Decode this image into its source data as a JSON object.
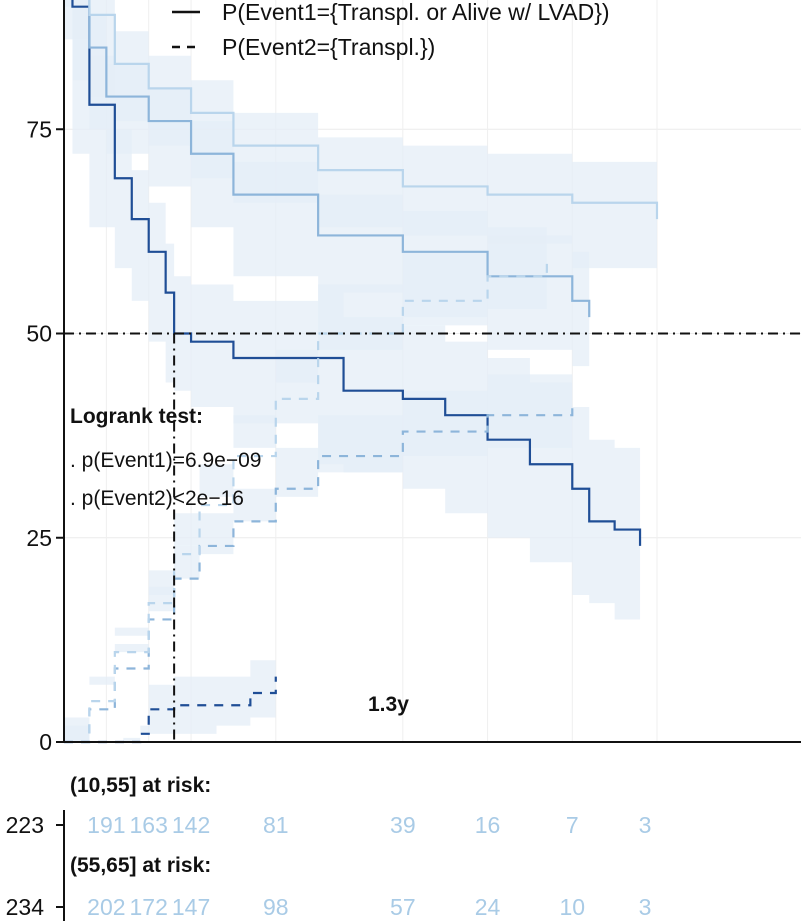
{
  "legend": {
    "event1": "P(Event1={Transpl. or Alive w/ LVAD})",
    "event2": "P(Event2={Transpl.})"
  },
  "logrank": {
    "title": "Logrank test:",
    "p1": ". p(Event1)=6.9e−09",
    "p2": ". p(Event2)<2e−16"
  },
  "median_label": "1.3y",
  "risk_tables": [
    {
      "title": "(10,55] at risk:",
      "n": "223",
      "counts": [
        "191",
        "163",
        "142",
        "81",
        "39",
        "16",
        "7",
        "3"
      ]
    },
    {
      "title": "(55,65] at risk:",
      "n": "234",
      "counts": [
        "202",
        "172",
        "147",
        "98",
        "57",
        "24",
        "10",
        "3"
      ]
    }
  ],
  "colors": {
    "dark": "#1f4e96",
    "mid": "#8db5da",
    "light": "#b9d5ec",
    "band": "#e4edf7"
  },
  "chart_data": {
    "type": "line",
    "xlim": [
      0,
      8.7
    ],
    "ylim": [
      0,
      100
    ],
    "y_ticks": [
      0,
      25,
      50,
      75
    ],
    "y_tick_labels": [
      "0",
      "25",
      "50",
      "75"
    ],
    "risk_times": [
      0.5,
      1,
      1.5,
      2.5,
      4,
      5,
      6,
      7
    ],
    "median_time": 1.3,
    "median_prob": 50,
    "series": [
      {
        "key": "e1_dark",
        "style": "solid",
        "color": "#1f4e96",
        "x": [
          0,
          0.1,
          0.3,
          0.6,
          0.8,
          1,
          1.2,
          1.3,
          1.5,
          2,
          3,
          3.3,
          4,
          4.5,
          5,
          5.5,
          6,
          6.2,
          6.5,
          6.8
        ],
        "y": [
          100,
          90,
          78,
          69,
          64,
          60,
          55,
          50,
          49,
          47,
          47,
          43,
          42,
          40,
          37,
          34,
          31,
          27,
          26,
          24
        ],
        "upper": [
          100,
          94,
          84,
          75,
          70,
          66,
          61,
          57,
          56,
          54,
          55,
          52,
          51,
          49,
          47,
          44,
          41,
          37,
          36,
          34
        ],
        "lower": [
          100,
          86,
          72,
          63,
          58,
          54,
          49,
          44,
          43,
          41,
          39,
          34,
          33,
          31,
          28,
          25,
          22,
          18,
          17,
          15
        ]
      },
      {
        "key": "e1_mid",
        "style": "solid",
        "color": "#8db5da",
        "x": [
          0,
          0.1,
          0.3,
          0.5,
          1,
          1.5,
          2,
          3,
          4,
          5,
          6,
          6.2
        ],
        "y": [
          100,
          93,
          85,
          79,
          76,
          72,
          67,
          62,
          60,
          57,
          54,
          52
        ],
        "upper": [
          100,
          96,
          89,
          83,
          80,
          76,
          71,
          67,
          65,
          62,
          60,
          58
        ],
        "lower": [
          100,
          90,
          81,
          75,
          72,
          68,
          63,
          57,
          55,
          52,
          48,
          46
        ]
      },
      {
        "key": "e1_light",
        "style": "solid",
        "color": "#b9d5ec",
        "x": [
          0,
          0.1,
          0.3,
          0.6,
          1,
          1.5,
          2,
          3,
          4,
          5,
          6,
          7
        ],
        "y": [
          100,
          96,
          89,
          83,
          80,
          77,
          73,
          70,
          68,
          67,
          66,
          64
        ],
        "upper": [
          100,
          98,
          92,
          87,
          84,
          81,
          77,
          74,
          73,
          72,
          71,
          70
        ],
        "lower": [
          100,
          94,
          86,
          79,
          76,
          73,
          69,
          66,
          63,
          62,
          61,
          58
        ]
      },
      {
        "key": "e2_dark",
        "style": "dashed",
        "color": "#1f4e96",
        "x": [
          0,
          0.7,
          0.9,
          1,
          1.3,
          1.5,
          1.8,
          2.2,
          2.5
        ],
        "y": [
          0,
          0,
          1,
          4,
          4.5,
          4.5,
          4.5,
          6,
          8
        ],
        "upper": [
          0,
          0.5,
          2,
          7,
          8,
          8,
          8,
          10,
          11
        ],
        "lower": [
          0,
          0,
          0,
          1,
          1,
          1,
          1,
          2,
          3
        ]
      },
      {
        "key": "e2_mid",
        "style": "dashed",
        "color": "#8db5da",
        "x": [
          0,
          0.3,
          0.6,
          1,
          1.3,
          1.6,
          2,
          2.5,
          3,
          4,
          5,
          6
        ],
        "y": [
          0,
          4,
          9,
          15,
          20,
          24,
          27,
          31,
          35,
          38,
          40,
          41
        ],
        "upper": [
          0,
          6,
          12,
          19,
          24,
          28,
          31,
          36,
          40,
          43,
          45,
          46
        ],
        "lower": [
          0,
          2,
          6,
          11,
          16,
          20,
          23,
          27,
          30,
          33,
          35,
          36
        ]
      },
      {
        "key": "e2_light",
        "style": "dashed",
        "color": "#b9d5ec",
        "x": [
          0,
          0.3,
          0.6,
          1,
          1.3,
          1.6,
          2,
          2.5,
          3,
          4,
          5,
          5.7
        ],
        "y": [
          0,
          5,
          11,
          17,
          23,
          29,
          35,
          42,
          50,
          54,
          57,
          59
        ],
        "upper": [
          0,
          7,
          14,
          21,
          28,
          34,
          40,
          48,
          56,
          60,
          63,
          65
        ],
        "lower": [
          0,
          3,
          8,
          13,
          18,
          24,
          30,
          36,
          44,
          48,
          51,
          53
        ]
      }
    ]
  }
}
